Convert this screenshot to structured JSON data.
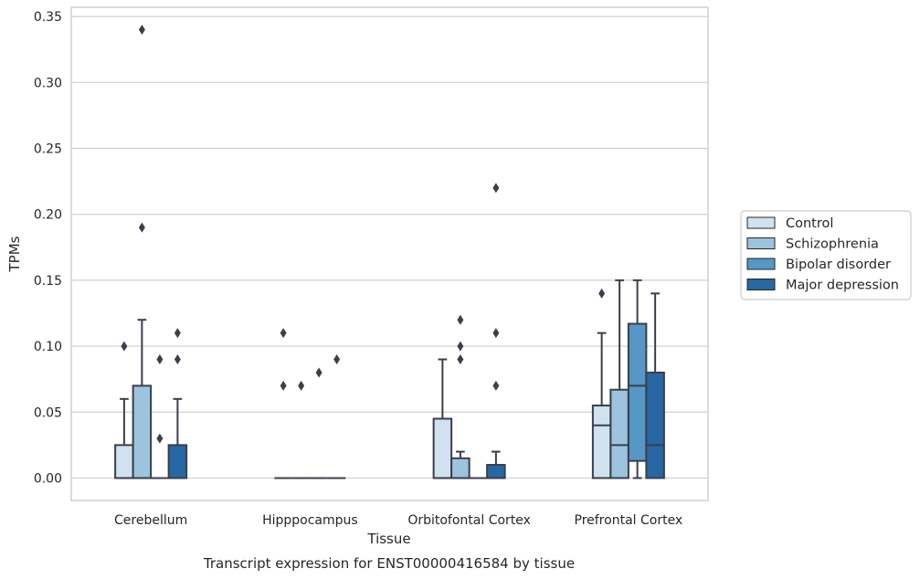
{
  "chart_data": {
    "type": "box",
    "title": "",
    "caption": "Transcript expression for ENST00000416584 by tissue",
    "xlabel": "Tissue",
    "ylabel": "TPMs",
    "ylim": [
      -0.017,
      0.357
    ],
    "yticks": [
      "0.00",
      "0.05",
      "0.10",
      "0.15",
      "0.20",
      "0.25",
      "0.30",
      "0.35"
    ],
    "ytick_values": [
      0,
      0.05,
      0.1,
      0.15,
      0.2,
      0.25,
      0.3,
      0.35
    ],
    "grid": "horizontal",
    "legend_position": "right",
    "categories": [
      "Cerebellum",
      "Hipppocampus",
      "Orbitofontal Cortex",
      "Prefrontal Cortex"
    ],
    "series": [
      {
        "name": "Control",
        "color": "#d0e1f0",
        "boxes": [
          {
            "q1": 0,
            "median": 0,
            "q3": 0.025,
            "whislo": 0,
            "whishi": 0.06,
            "fliers": [
              0.1
            ]
          },
          {
            "q1": 0,
            "median": 0,
            "q3": 0,
            "whislo": 0,
            "whishi": 0,
            "fliers": [
              0.11,
              0.07
            ]
          },
          {
            "q1": 0,
            "median": 0,
            "q3": 0.045,
            "whislo": 0,
            "whishi": 0.09,
            "fliers": []
          },
          {
            "q1": 0,
            "median": 0.04,
            "q3": 0.055,
            "whislo": 0,
            "whishi": 0.11,
            "fliers": [
              0.14
            ]
          }
        ]
      },
      {
        "name": "Schizophrenia",
        "color": "#9cc4de",
        "boxes": [
          {
            "q1": 0,
            "median": 0,
            "q3": 0.07,
            "whislo": 0,
            "whishi": 0.12,
            "fliers": [
              0.34,
              0.19
            ]
          },
          {
            "q1": 0,
            "median": 0,
            "q3": 0,
            "whislo": 0,
            "whishi": 0,
            "fliers": [
              0.07
            ]
          },
          {
            "q1": 0,
            "median": 0,
            "q3": 0.015,
            "whislo": 0,
            "whishi": 0.02,
            "fliers": [
              0.12,
              0.1,
              0.09
            ]
          },
          {
            "q1": 0,
            "median": 0.025,
            "q3": 0.067,
            "whislo": 0,
            "whishi": 0.15,
            "fliers": []
          }
        ]
      },
      {
        "name": "Bipolar disorder",
        "color": "#5697c5",
        "boxes": [
          {
            "q1": 0,
            "median": 0,
            "q3": 0,
            "whislo": 0,
            "whishi": 0,
            "fliers": [
              0.09,
              0.03
            ]
          },
          {
            "q1": 0,
            "median": 0,
            "q3": 0,
            "whislo": 0,
            "whishi": 0,
            "fliers": [
              0.08
            ]
          },
          {
            "q1": 0,
            "median": 0,
            "q3": 0,
            "whislo": 0,
            "whishi": 0,
            "fliers": []
          },
          {
            "q1": 0.013,
            "median": 0.07,
            "q3": 0.117,
            "whislo": 0,
            "whishi": 0.15,
            "fliers": []
          }
        ]
      },
      {
        "name": "Major depression",
        "color": "#2767a4",
        "boxes": [
          {
            "q1": 0,
            "median": 0,
            "q3": 0.025,
            "whislo": 0,
            "whishi": 0.06,
            "fliers": [
              0.11,
              0.09
            ]
          },
          {
            "q1": 0,
            "median": 0,
            "q3": 0,
            "whislo": 0,
            "whishi": 0,
            "fliers": [
              0.09
            ]
          },
          {
            "q1": 0,
            "median": 0,
            "q3": 0.01,
            "whislo": 0,
            "whishi": 0.02,
            "fliers": [
              0.22,
              0.11,
              0.07
            ]
          },
          {
            "q1": 0,
            "median": 0.025,
            "q3": 0.08,
            "whislo": 0,
            "whishi": 0.14,
            "fliers": []
          }
        ]
      }
    ]
  }
}
